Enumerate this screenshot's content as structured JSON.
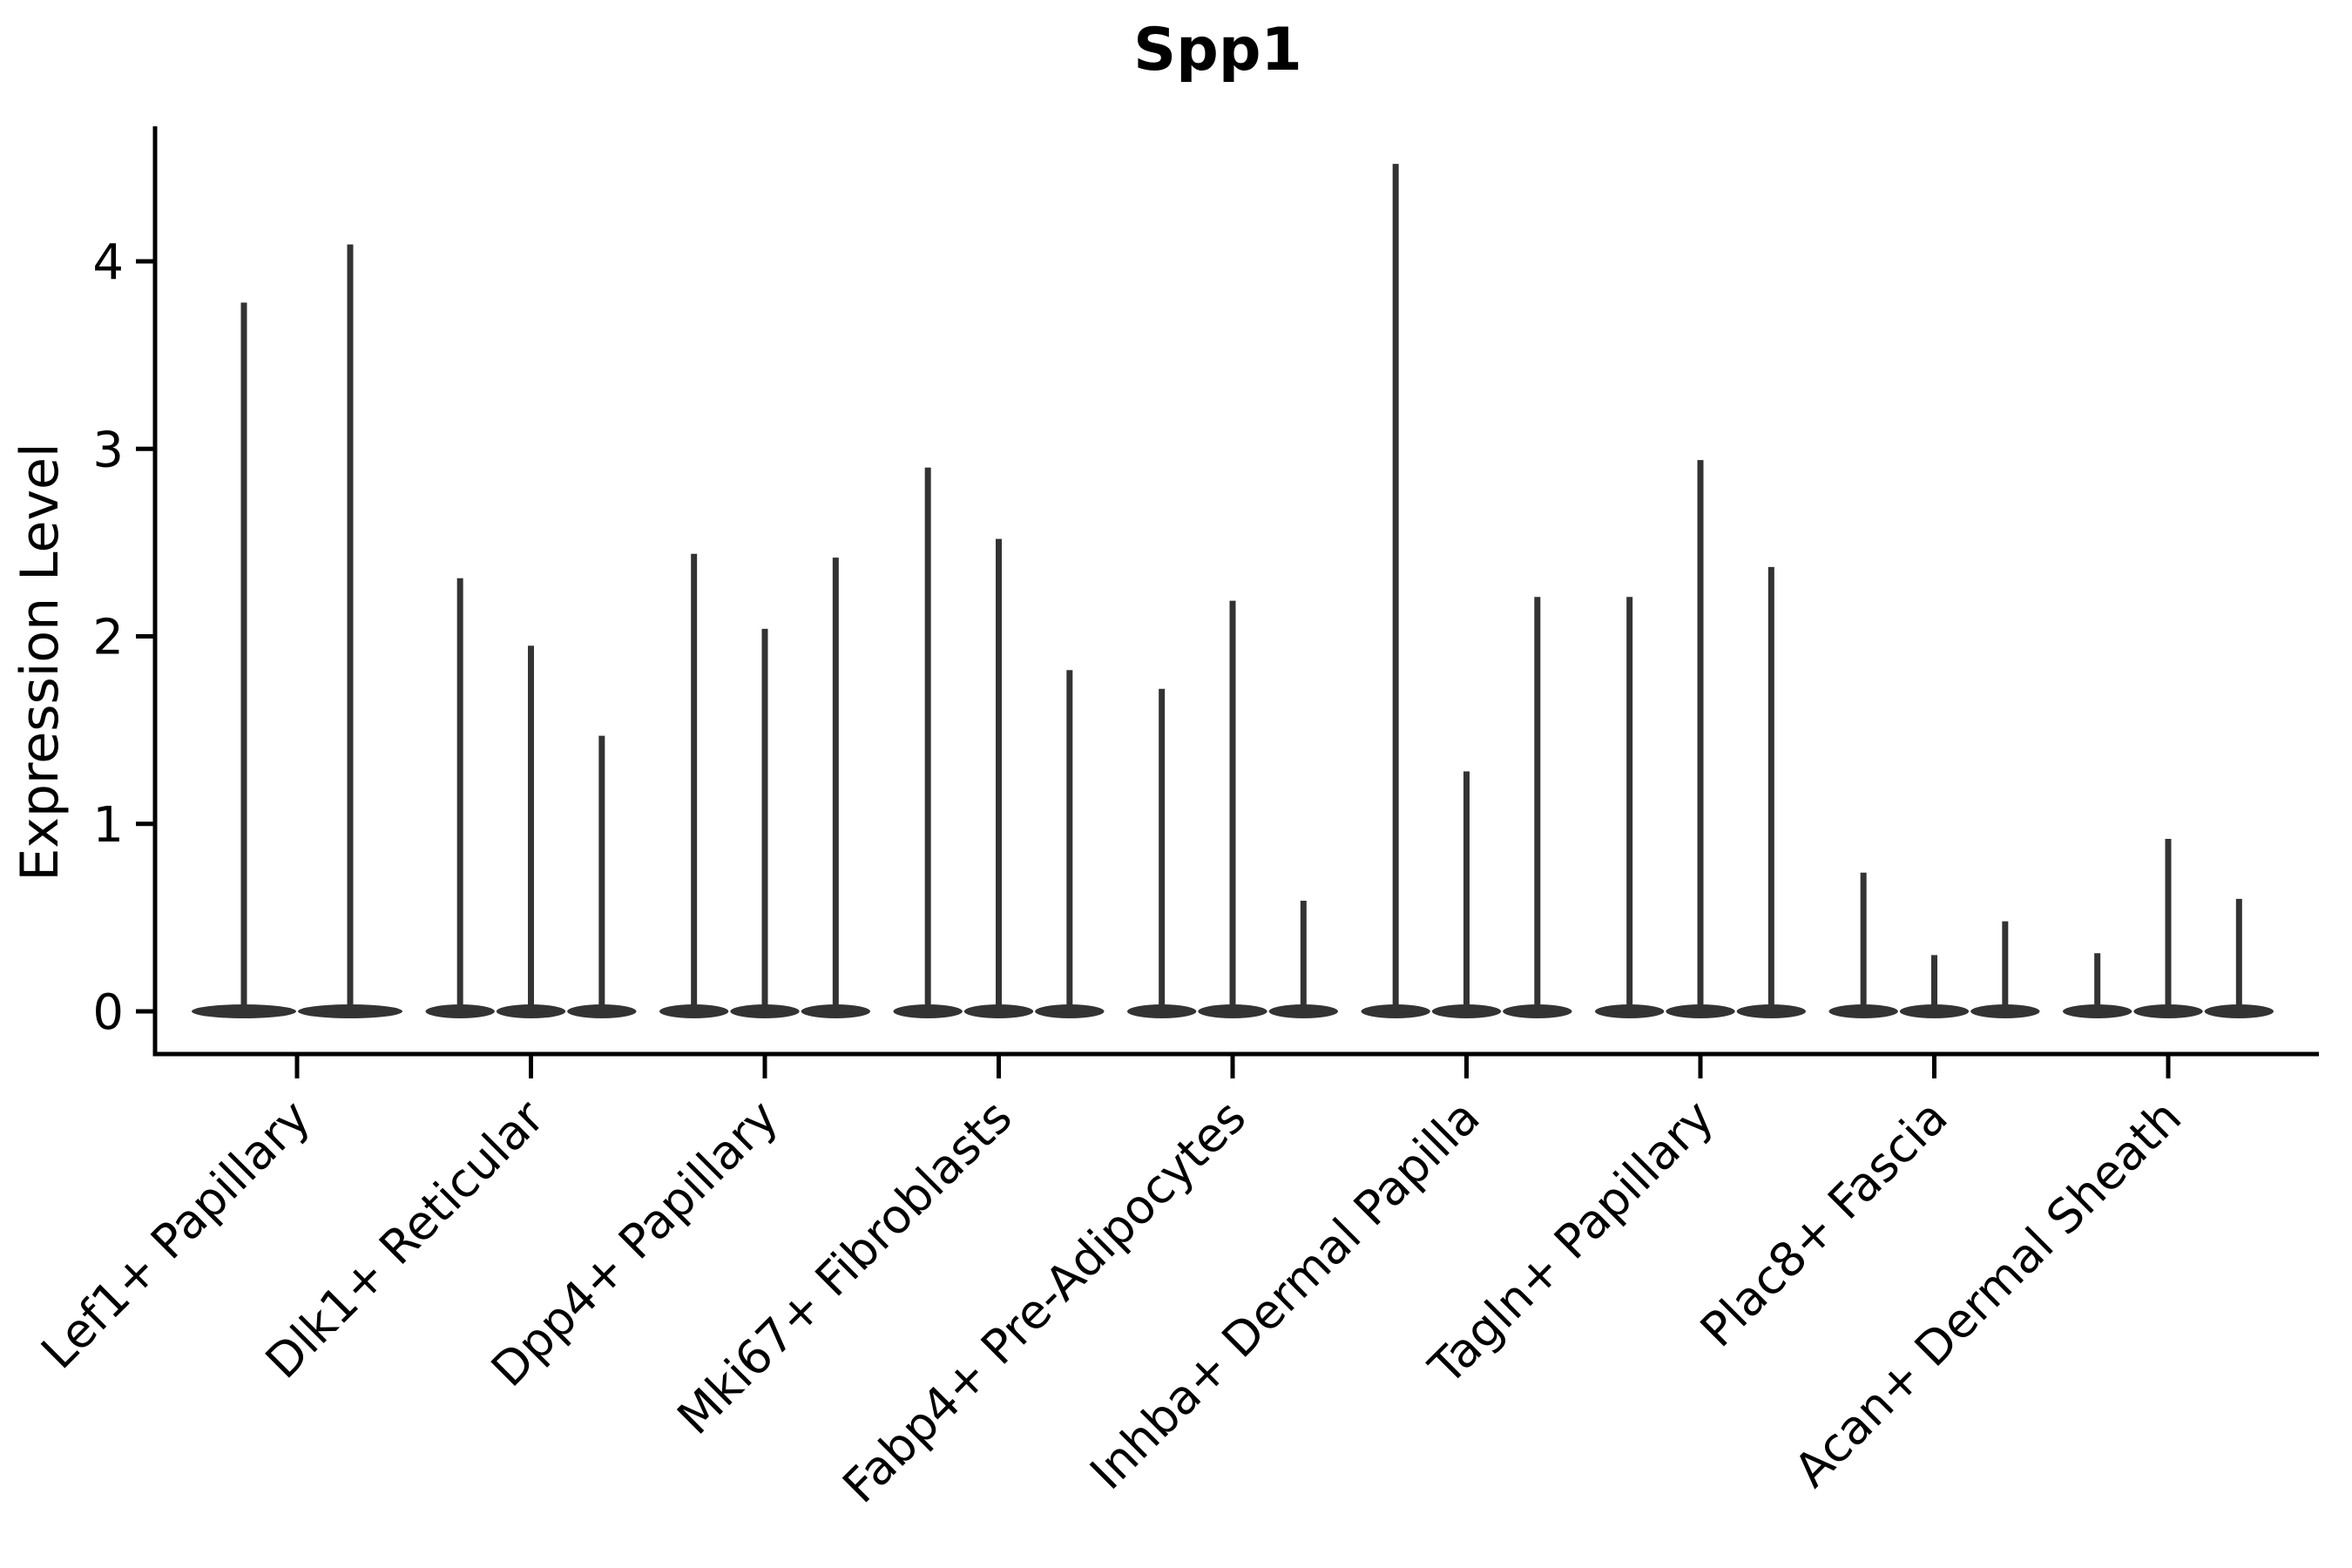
{
  "figure": {
    "background": "#ffffff"
  },
  "chart_data": {
    "type": "violin",
    "title": "Spp1",
    "xlabel": "",
    "ylabel": "Expression Level",
    "yticks": [
      0,
      1,
      2,
      3,
      4
    ],
    "ylim": [
      -0.23,
      4.72
    ],
    "grid": false,
    "legend": "none",
    "ink_color": "#000000",
    "violin_color": "#333333",
    "categories": [
      {
        "label": "Lef1+ Papillary",
        "violin_maxima": [
          3.78,
          4.09
        ]
      },
      {
        "label": "Dlk1+ Reticular",
        "violin_maxima": [
          2.31,
          1.95,
          1.47
        ]
      },
      {
        "label": "Dpp4+ Papillary",
        "violin_maxima": [
          2.44,
          2.04,
          2.42
        ]
      },
      {
        "label": "Mki67+ Fibroblasts",
        "violin_maxima": [
          2.9,
          2.52,
          1.82
        ]
      },
      {
        "label": "Fabp4+ Pre-Adipocytes",
        "violin_maxima": [
          1.72,
          2.19,
          0.59
        ]
      },
      {
        "label": "Inhba+ Dermal Papilla",
        "violin_maxima": [
          4.52,
          1.28,
          2.21
        ]
      },
      {
        "label": "Tagln+ Papillary",
        "violin_maxima": [
          2.21,
          2.94,
          2.37
        ]
      },
      {
        "label": "Plac8+ Fascia",
        "violin_maxima": [
          0.74,
          0.3,
          0.48
        ]
      },
      {
        "label": "Acan+ Dermal Sheath",
        "violin_maxima": [
          0.31,
          0.92,
          0.6
        ]
      }
    ],
    "annotation": "Each cluster shows thin violins with nearly all density at 0 and a thin tail reaching the listed maximum expression value."
  }
}
